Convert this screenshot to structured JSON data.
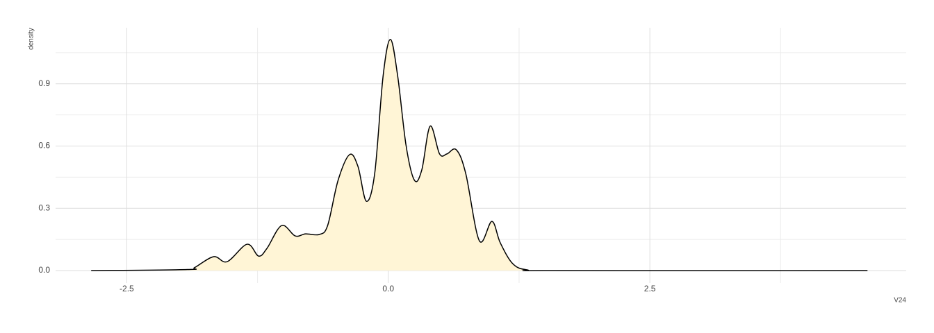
{
  "chart_data": {
    "type": "area",
    "x_label": "V24",
    "y_label": "density",
    "x": [
      -2.84,
      -1.92,
      -1.85,
      -1.67,
      -1.54,
      -1.35,
      -1.24,
      -1.16,
      -1.02,
      -0.89,
      -0.79,
      -0.66,
      -0.58,
      -0.48,
      -0.37,
      -0.29,
      -0.21,
      -0.13,
      -0.05,
      0.02,
      0.09,
      0.17,
      0.25,
      0.32,
      0.4,
      0.49,
      0.56,
      0.65,
      0.74,
      0.87,
      0.99,
      1.07,
      1.19,
      1.33,
      1.6,
      4.58
    ],
    "values": [
      0,
      0.005,
      0.015,
      0.067,
      0.043,
      0.127,
      0.07,
      0.107,
      0.217,
      0.167,
      0.177,
      0.174,
      0.217,
      0.435,
      0.559,
      0.502,
      0.334,
      0.468,
      0.936,
      1.114,
      0.936,
      0.602,
      0.435,
      0.485,
      0.696,
      0.562,
      0.562,
      0.582,
      0.468,
      0.144,
      0.237,
      0.134,
      0.033,
      0.003,
      0,
      0
    ],
    "color": "#fff5d6",
    "line_color": "#000000",
    "xlim": [
      -3.18,
      4.95
    ],
    "ylim": [
      -0.06,
      1.17
    ],
    "xticks": [
      {
        "value": -2.5,
        "label": "-2.5"
      },
      {
        "value": 0,
        "label": "0.0"
      },
      {
        "value": 2.5,
        "label": "2.5"
      }
    ],
    "yticks": [
      {
        "value": 0,
        "label": "0.0"
      },
      0.3,
      0.6,
      0.9
    ],
    "x_minor_ticks": [
      -1.25,
      1.25,
      3.75
    ],
    "y_minor_ticks": [
      0.15,
      0.45,
      0.75,
      1.05
    ],
    "grid": true
  }
}
